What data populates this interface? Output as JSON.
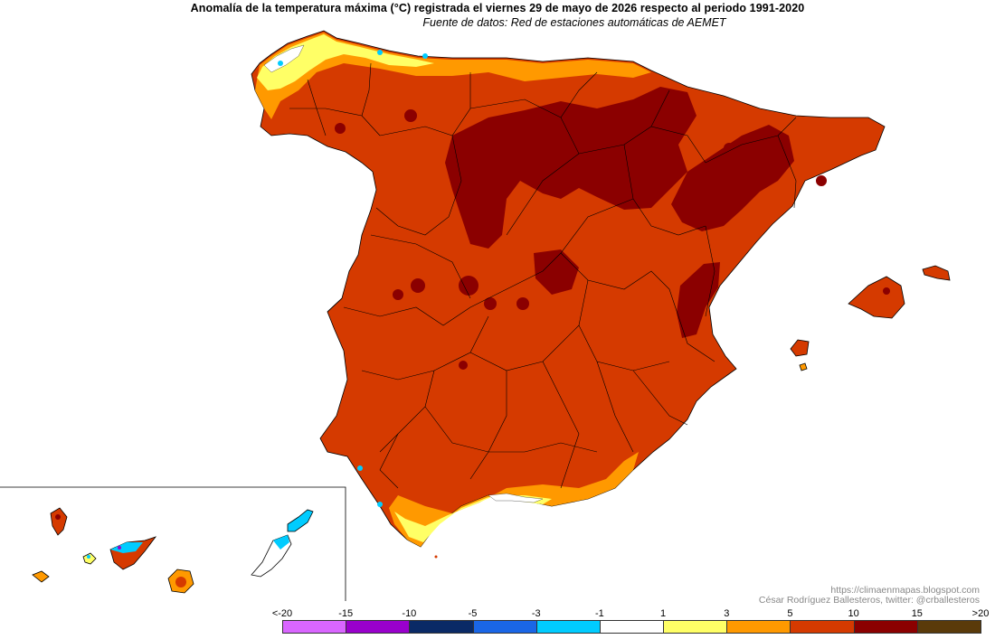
{
  "header": {
    "title": "Anomalía de la temperatura máxima (°C) registrada el viernes 29 de mayo de 2026 respecto al periodo 1991-2020",
    "subtitle": "Fuente de datos: Red de estaciones automáticas de AEMET"
  },
  "credit": {
    "url": "https://climaenmapas.blogspot.com",
    "author": "César Rodríguez Ballesteros, twitter: @crballesteros"
  },
  "legend": {
    "ticks": [
      "<-20",
      "-15",
      "-10",
      "-5",
      "-3",
      "-1",
      "1",
      "3",
      "5",
      "10",
      "15",
      ">20"
    ],
    "colors": [
      "#d966ff",
      "#9900cc",
      "#0a2a66",
      "#1a66e6",
      "#00ccff",
      "#ffffff",
      "#ffff66",
      "#ff9900",
      "#d53a00",
      "#8b0000",
      "#5a3a0a"
    ]
  },
  "map_colors": {
    "dominant_5_10": "#d53a00",
    "hot_10_15": "#8b0000",
    "warm_3_5": "#ff9900",
    "mild_1_3": "#ffff66",
    "neutral": "#ffffff",
    "cool_minus3_minus1": "#00ccff",
    "cold_minus5_minus3": "#1a66e6"
  }
}
